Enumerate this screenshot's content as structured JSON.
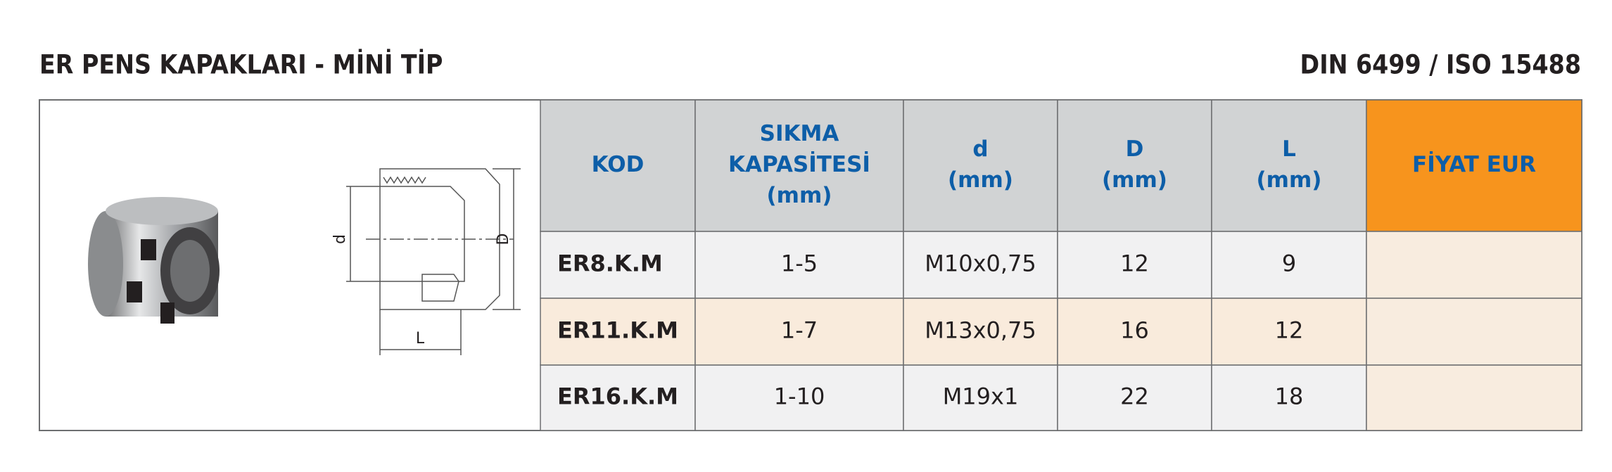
{
  "header": {
    "title": "ER PENS KAPAKLARI - MİNİ TİP",
    "standard": "DIN 6499 / ISO 15488"
  },
  "diagram": {
    "labels": [
      "d",
      "D",
      "L"
    ]
  },
  "table": {
    "columns": [
      [
        "KOD"
      ],
      [
        "SIKMA",
        "KAPASİTESİ",
        "(mm)"
      ],
      [
        "d",
        "(mm)"
      ],
      [
        "D",
        "(mm)"
      ],
      [
        "L",
        "(mm)"
      ],
      [
        "FİYAT EUR"
      ]
    ],
    "rows": [
      [
        "ER8.K.M",
        "1-5",
        "M10x0,75",
        "12",
        "9"
      ],
      [
        "ER11.K.M",
        "1-7",
        "M13x0,75",
        "16",
        "12"
      ],
      [
        "ER16.K.M",
        "1-10",
        "M19x1",
        "22",
        "18"
      ]
    ]
  }
}
